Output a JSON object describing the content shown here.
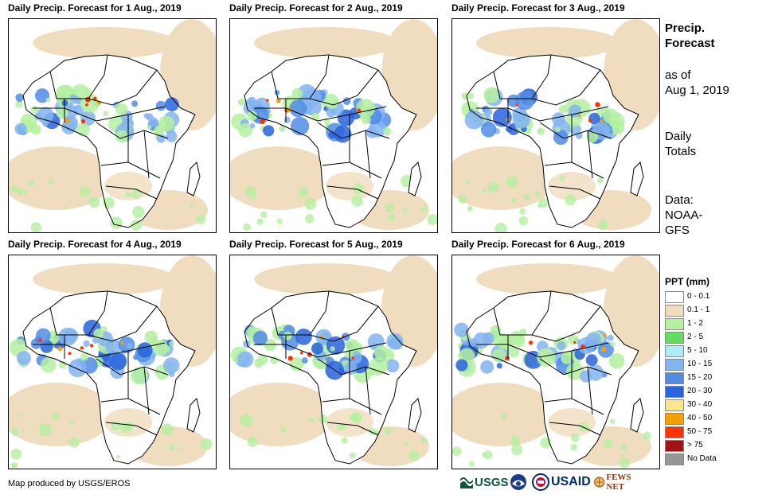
{
  "panels": [
    {
      "title": "Daily Precip. Forecast for 1 Aug., 2019"
    },
    {
      "title": "Daily Precip. Forecast for 2 Aug., 2019"
    },
    {
      "title": "Daily Precip. Forecast for 3 Aug., 2019"
    },
    {
      "title": "Daily Precip. Forecast for 4 Aug., 2019"
    },
    {
      "title": "Daily Precip. Forecast for 5 Aug., 2019"
    },
    {
      "title": "Daily Precip. Forecast for 6 Aug., 2019"
    }
  ],
  "sidebar": {
    "title_line1": "Precip.",
    "title_line2": "Forecast",
    "asof_line1": "as of",
    "asof_line2": "Aug 1, 2019",
    "totals_line1": "Daily",
    "totals_line2": "Totals",
    "data_line1": "Data:",
    "data_line2": "NOAA-",
    "data_line3": "GFS"
  },
  "legend": {
    "title": "PPT (mm)",
    "items": [
      {
        "label": "0 - 0.1",
        "color": "#ffffff"
      },
      {
        "label": "0.1 - 1",
        "color": "#f0dcbe"
      },
      {
        "label": "1 - 2",
        "color": "#b4f0a0"
      },
      {
        "label": "2 - 5",
        "color": "#64dc64"
      },
      {
        "label": "5 - 10",
        "color": "#aaecf8"
      },
      {
        "label": "10 - 15",
        "color": "#82b4f0"
      },
      {
        "label": "15 - 20",
        "color": "#508ce6"
      },
      {
        "label": "20 - 30",
        "color": "#2864dc"
      },
      {
        "label": "30 - 40",
        "color": "#fae68c"
      },
      {
        "label": "40 - 50",
        "color": "#f5a000"
      },
      {
        "label": "50 - 75",
        "color": "#ff3200"
      },
      {
        "label": "> 75",
        "color": "#a01414"
      },
      {
        "label": "No Data",
        "color": "#969696"
      }
    ]
  },
  "footer": {
    "credit": "Map produced by USGS/EROS",
    "logo_usgs": "USGS",
    "logo_usaid": "USAID",
    "logo_fewsnet": "FEWS NET"
  }
}
